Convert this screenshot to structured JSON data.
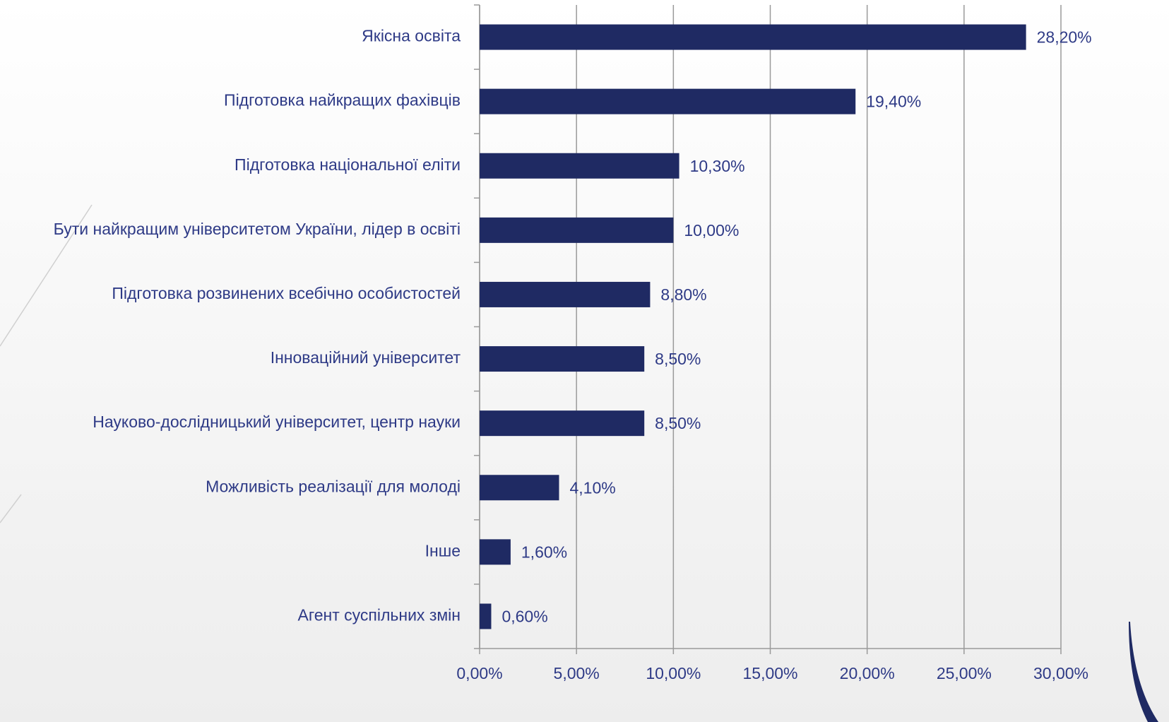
{
  "chart_data": {
    "type": "barh",
    "categories": [
      "Якісна освіта",
      "Підготовка найкращих фахівців",
      "Підготовка національної еліти",
      "Бути найкращим університетом України, лідер в освіті",
      "Підготовка розвинених всебічно особистостей",
      "Інноваційний університет",
      "Науково-дослідницький університет, центр науки",
      "Можливість реалізації для молоді",
      "Інше",
      "Агент суспільних змін"
    ],
    "values": [
      28.2,
      19.4,
      10.3,
      10.0,
      8.8,
      8.5,
      8.5,
      4.1,
      1.6,
      0.6
    ],
    "value_labels": [
      "28,20%",
      "19,40%",
      "10,30%",
      "10,00%",
      "8,80%",
      "8,50%",
      "8,50%",
      "4,10%",
      "1,60%",
      "0,60%"
    ],
    "color": "#1f2a63",
    "xlim": [
      0,
      30
    ],
    "xticks": [
      {
        "value": 0,
        "label": "0,00%"
      },
      {
        "value": 5,
        "label": "5,00%"
      },
      {
        "value": 10,
        "label": "10,00%"
      },
      {
        "value": 15,
        "label": "15,00%"
      },
      {
        "value": 20,
        "label": "20,00%"
      },
      {
        "value": 25,
        "label": "25,00%"
      },
      {
        "value": 30,
        "label": "30,00%"
      }
    ],
    "grid": true
  }
}
